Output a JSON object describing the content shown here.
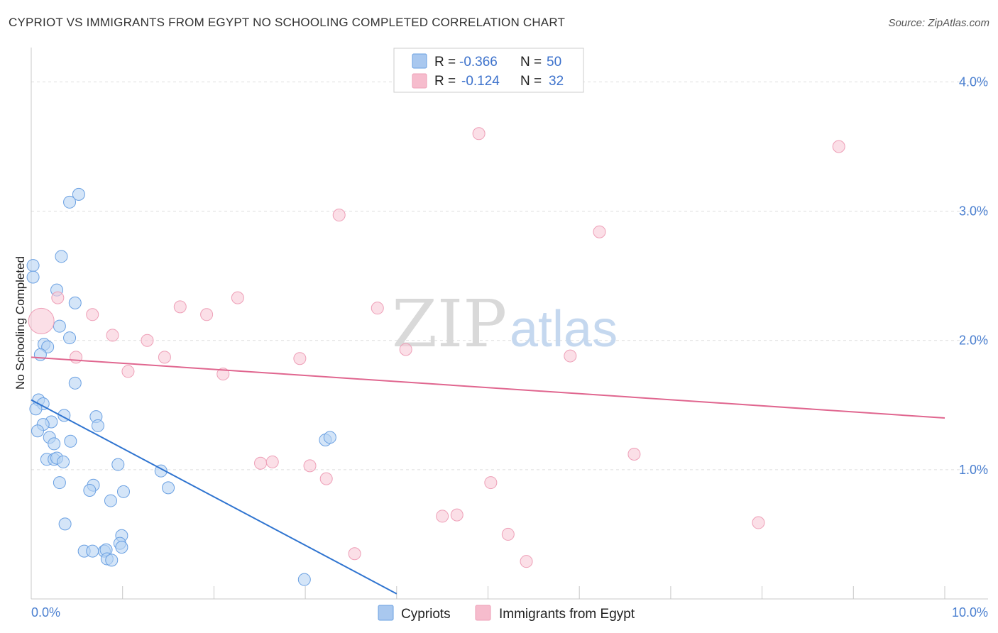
{
  "header": {
    "title": "CYPRIOT VS IMMIGRANTS FROM EGYPT NO SCHOOLING COMPLETED CORRELATION CHART",
    "source": "Source: ZipAtlas.com"
  },
  "watermark": {
    "zip": "ZIP",
    "atlas": "atlas"
  },
  "legend_top": {
    "rows": [
      {
        "r_label": "R =",
        "r_value": "-0.366",
        "n_label": "N =",
        "n_value": "50",
        "color": "#a9c8ef"
      },
      {
        "r_label": "R =",
        "r_value": "-0.124",
        "n_label": "N =",
        "n_value": "32",
        "color": "#f6bccd"
      }
    ]
  },
  "legend_bottom": {
    "items": [
      {
        "label": "Cypriots",
        "color": "#a9c8ef"
      },
      {
        "label": "Immigrants from Egypt",
        "color": "#f6bccd"
      }
    ]
  },
  "chart_data": {
    "type": "scatter",
    "title": "CYPRIOT VS IMMIGRANTS FROM EGYPT NO SCHOOLING COMPLETED CORRELATION CHART",
    "xlabel": "",
    "ylabel": "No Schooling Completed",
    "xlim": [
      0,
      10
    ],
    "ylim": [
      0,
      4.2
    ],
    "x_tick_labels": {
      "left": "0.0%",
      "right": "10.0%"
    },
    "y_ticks": [
      {
        "value": 1,
        "label": "1.0%"
      },
      {
        "value": 2,
        "label": "2.0%"
      },
      {
        "value": 3,
        "label": "3.0%"
      },
      {
        "value": 4,
        "label": "4.0%"
      }
    ],
    "grid": true,
    "legend_position": "top-center",
    "series": [
      {
        "name": "Cypriots",
        "color": "#6aa0e2",
        "fill": "#b7d3f3",
        "trend": {
          "x": [
            0.0,
            4.0
          ],
          "y": [
            1.54,
            0.04
          ],
          "color": "#2f74d0"
        },
        "points": [
          {
            "x": 0.02,
            "y": 2.58
          },
          {
            "x": 0.02,
            "y": 2.49
          },
          {
            "x": 0.52,
            "y": 3.13
          },
          {
            "x": 0.42,
            "y": 3.07
          },
          {
            "x": 0.33,
            "y": 2.65
          },
          {
            "x": 0.28,
            "y": 2.39
          },
          {
            "x": 0.48,
            "y": 2.29
          },
          {
            "x": 0.31,
            "y": 2.11
          },
          {
            "x": 0.42,
            "y": 2.02
          },
          {
            "x": 0.14,
            "y": 1.97
          },
          {
            "x": 0.18,
            "y": 1.95
          },
          {
            "x": 0.1,
            "y": 1.89
          },
          {
            "x": 0.48,
            "y": 1.67
          },
          {
            "x": 0.08,
            "y": 1.54
          },
          {
            "x": 0.13,
            "y": 1.51
          },
          {
            "x": 0.05,
            "y": 1.47
          },
          {
            "x": 0.36,
            "y": 1.42
          },
          {
            "x": 0.71,
            "y": 1.41
          },
          {
            "x": 0.22,
            "y": 1.37
          },
          {
            "x": 0.13,
            "y": 1.35
          },
          {
            "x": 0.73,
            "y": 1.34
          },
          {
            "x": 0.07,
            "y": 1.3
          },
          {
            "x": 0.2,
            "y": 1.25
          },
          {
            "x": 0.43,
            "y": 1.22
          },
          {
            "x": 0.25,
            "y": 1.2
          },
          {
            "x": 3.22,
            "y": 1.23
          },
          {
            "x": 3.27,
            "y": 1.25
          },
          {
            "x": 0.17,
            "y": 1.08
          },
          {
            "x": 0.25,
            "y": 1.08
          },
          {
            "x": 0.28,
            "y": 1.09
          },
          {
            "x": 0.35,
            "y": 1.06
          },
          {
            "x": 0.95,
            "y": 1.04
          },
          {
            "x": 1.42,
            "y": 0.99
          },
          {
            "x": 0.31,
            "y": 0.9
          },
          {
            "x": 0.68,
            "y": 0.88
          },
          {
            "x": 0.64,
            "y": 0.84
          },
          {
            "x": 1.01,
            "y": 0.83
          },
          {
            "x": 1.5,
            "y": 0.86
          },
          {
            "x": 0.87,
            "y": 0.76
          },
          {
            "x": 0.37,
            "y": 0.58
          },
          {
            "x": 0.99,
            "y": 0.49
          },
          {
            "x": 0.97,
            "y": 0.43
          },
          {
            "x": 0.99,
            "y": 0.4
          },
          {
            "x": 0.58,
            "y": 0.37
          },
          {
            "x": 0.67,
            "y": 0.37
          },
          {
            "x": 0.8,
            "y": 0.37
          },
          {
            "x": 0.82,
            "y": 0.38
          },
          {
            "x": 0.83,
            "y": 0.31
          },
          {
            "x": 0.88,
            "y": 0.3
          },
          {
            "x": 2.99,
            "y": 0.15
          }
        ]
      },
      {
        "name": "Immigrants from Egypt",
        "color": "#ee9fb7",
        "fill": "#f8c9d7",
        "trend": {
          "x": [
            0.0,
            10.0
          ],
          "y": [
            1.87,
            1.4
          ],
          "color": "#e0668f"
        },
        "points": [
          {
            "x": 0.11,
            "y": 2.15,
            "big": true
          },
          {
            "x": 4.9,
            "y": 3.6
          },
          {
            "x": 8.84,
            "y": 3.5
          },
          {
            "x": 3.37,
            "y": 2.97
          },
          {
            "x": 6.22,
            "y": 2.84
          },
          {
            "x": 0.29,
            "y": 2.33
          },
          {
            "x": 2.26,
            "y": 2.33
          },
          {
            "x": 1.63,
            "y": 2.26
          },
          {
            "x": 3.79,
            "y": 2.25
          },
          {
            "x": 1.92,
            "y": 2.2
          },
          {
            "x": 0.67,
            "y": 2.2
          },
          {
            "x": 0.89,
            "y": 2.04
          },
          {
            "x": 1.27,
            "y": 2.0
          },
          {
            "x": 4.1,
            "y": 1.93
          },
          {
            "x": 0.49,
            "y": 1.87
          },
          {
            "x": 1.46,
            "y": 1.87
          },
          {
            "x": 2.94,
            "y": 1.86
          },
          {
            "x": 5.9,
            "y": 1.88
          },
          {
            "x": 1.06,
            "y": 1.76
          },
          {
            "x": 2.1,
            "y": 1.74
          },
          {
            "x": 6.6,
            "y": 1.12
          },
          {
            "x": 2.51,
            "y": 1.05
          },
          {
            "x": 2.64,
            "y": 1.06
          },
          {
            "x": 3.05,
            "y": 1.03
          },
          {
            "x": 3.23,
            "y": 0.93
          },
          {
            "x": 5.03,
            "y": 0.9
          },
          {
            "x": 4.5,
            "y": 0.64
          },
          {
            "x": 4.66,
            "y": 0.65
          },
          {
            "x": 7.96,
            "y": 0.59
          },
          {
            "x": 5.22,
            "y": 0.5
          },
          {
            "x": 3.54,
            "y": 0.35
          },
          {
            "x": 5.42,
            "y": 0.29
          }
        ]
      }
    ]
  }
}
